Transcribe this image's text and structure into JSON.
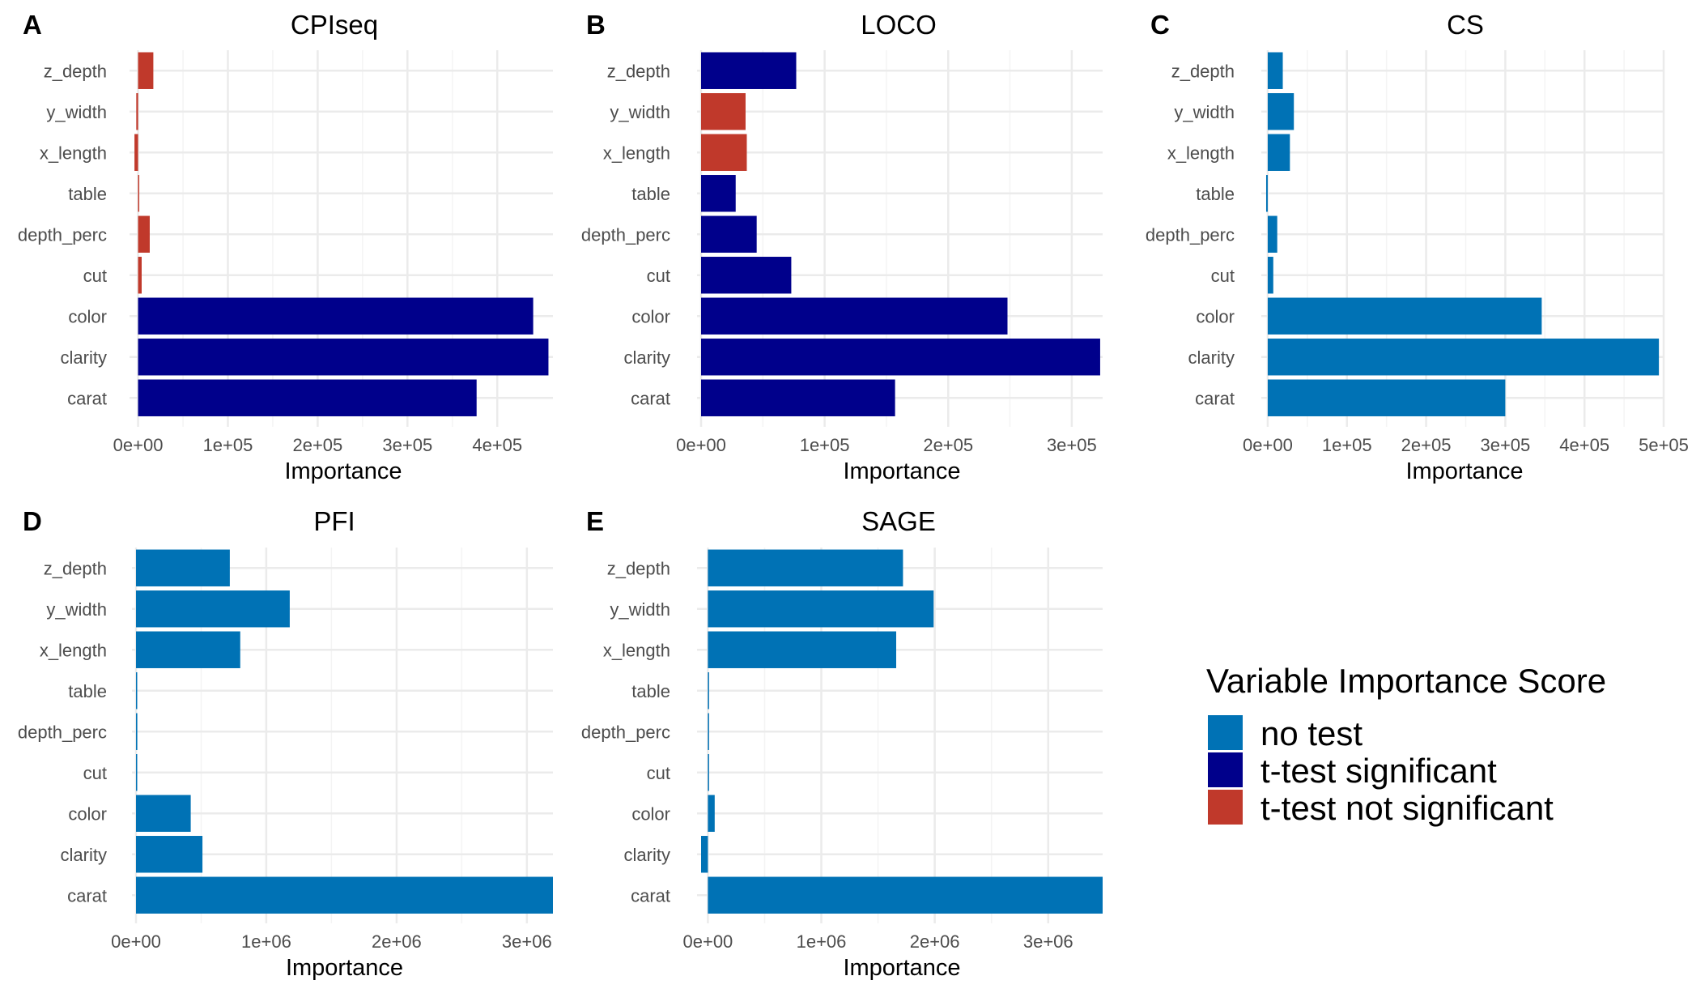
{
  "chart_data": [
    {
      "panel": "A",
      "title": "CPIseq",
      "type": "bar",
      "orientation": "horizontal",
      "xlabel": "Importance",
      "categories": [
        "carat",
        "clarity",
        "color",
        "cut",
        "depth_perc",
        "table",
        "x_length",
        "y_width",
        "z_depth"
      ],
      "values": [
        377000,
        457000,
        440000,
        4000,
        13000,
        1000,
        -4000,
        -2000,
        17000
      ],
      "groups": [
        "t-test significant",
        "t-test significant",
        "t-test significant",
        "t-test not significant",
        "t-test not significant",
        "t-test not significant",
        "t-test not significant",
        "t-test not significant",
        "t-test not significant"
      ],
      "xlim": [
        -5000,
        462000
      ],
      "xticks": [
        0,
        100000,
        200000,
        300000,
        400000
      ],
      "xtick_labels": [
        "0e+00",
        "1e+05",
        "2e+05",
        "3e+05",
        "4e+05"
      ]
    },
    {
      "panel": "B",
      "title": "LOCO",
      "type": "bar",
      "orientation": "horizontal",
      "xlabel": "Importance",
      "categories": [
        "carat",
        "clarity",
        "color",
        "cut",
        "depth_perc",
        "table",
        "x_length",
        "y_width",
        "z_depth"
      ],
      "values": [
        157000,
        323000,
        248000,
        73000,
        45000,
        28000,
        37000,
        36000,
        77000
      ],
      "groups": [
        "t-test significant",
        "t-test significant",
        "t-test significant",
        "t-test significant",
        "t-test significant",
        "t-test significant",
        "t-test not significant",
        "t-test not significant",
        "t-test significant"
      ],
      "xlim": [
        0,
        325000
      ],
      "xticks": [
        0,
        100000,
        200000,
        300000
      ],
      "xtick_labels": [
        "0e+00",
        "1e+05",
        "2e+05",
        "3e+05"
      ]
    },
    {
      "panel": "C",
      "title": "CS",
      "type": "bar",
      "orientation": "horizontal",
      "xlabel": "Importance",
      "categories": [
        "carat",
        "clarity",
        "color",
        "cut",
        "depth_perc",
        "table",
        "x_length",
        "y_width",
        "z_depth"
      ],
      "values": [
        300000,
        494000,
        346000,
        7000,
        12000,
        -2000,
        28000,
        33000,
        19000
      ],
      "groups": [
        "no test",
        "no test",
        "no test",
        "no test",
        "no test",
        "no test",
        "no test",
        "no test",
        "no test"
      ],
      "xlim": [
        -3000,
        500000
      ],
      "xticks": [
        0,
        100000,
        200000,
        300000,
        400000,
        500000
      ],
      "xtick_labels": [
        "0e+00",
        "1e+05",
        "2e+05",
        "3e+05",
        "4e+05",
        "5e+05"
      ]
    },
    {
      "panel": "D",
      "title": "PFI",
      "type": "bar",
      "orientation": "horizontal",
      "xlabel": "Importance",
      "categories": [
        "carat",
        "clarity",
        "color",
        "cut",
        "depth_perc",
        "table",
        "x_length",
        "y_width",
        "z_depth"
      ],
      "values": [
        3200000,
        510000,
        420000,
        8000,
        10000,
        5000,
        800000,
        1180000,
        720000
      ],
      "groups": [
        "no test",
        "no test",
        "no test",
        "no test",
        "no test",
        "no test",
        "no test",
        "no test",
        "no test"
      ],
      "xlim": [
        0,
        3200000
      ],
      "xticks": [
        0,
        1000000,
        2000000,
        3000000
      ],
      "xtick_labels": [
        "0e+00",
        "1e+06",
        "2e+06",
        "3e+06"
      ]
    },
    {
      "panel": "E",
      "title": "SAGE",
      "type": "bar",
      "orientation": "horizontal",
      "xlabel": "Importance",
      "categories": [
        "carat",
        "clarity",
        "color",
        "cut",
        "depth_perc",
        "table",
        "x_length",
        "y_width",
        "z_depth"
      ],
      "values": [
        3480000,
        -60000,
        60000,
        10000,
        10000,
        10000,
        1660000,
        1990000,
        1720000
      ],
      "groups": [
        "no test",
        "no test",
        "no test",
        "no test",
        "no test",
        "no test",
        "no test",
        "no test",
        "no test"
      ],
      "xlim": [
        -60000,
        3480000
      ],
      "xticks": [
        0,
        1000000,
        2000000,
        3000000
      ],
      "xtick_labels": [
        "0e+00",
        "1e+06",
        "2e+06",
        "3e+06"
      ]
    }
  ],
  "legend": {
    "title": "Variable Importance Score",
    "items": [
      {
        "label": "no test",
        "color": "#0072B5"
      },
      {
        "label": "t-test significant",
        "color": "#00008B"
      },
      {
        "label": "t-test not significant",
        "color": "#C0392B"
      }
    ]
  },
  "colors": {
    "no test": "#0072B5",
    "t-test significant": "#00008B",
    "t-test not significant": "#C0392B",
    "grid_major": "#EBEBEB",
    "grid_minor": "#F4F4F4"
  }
}
